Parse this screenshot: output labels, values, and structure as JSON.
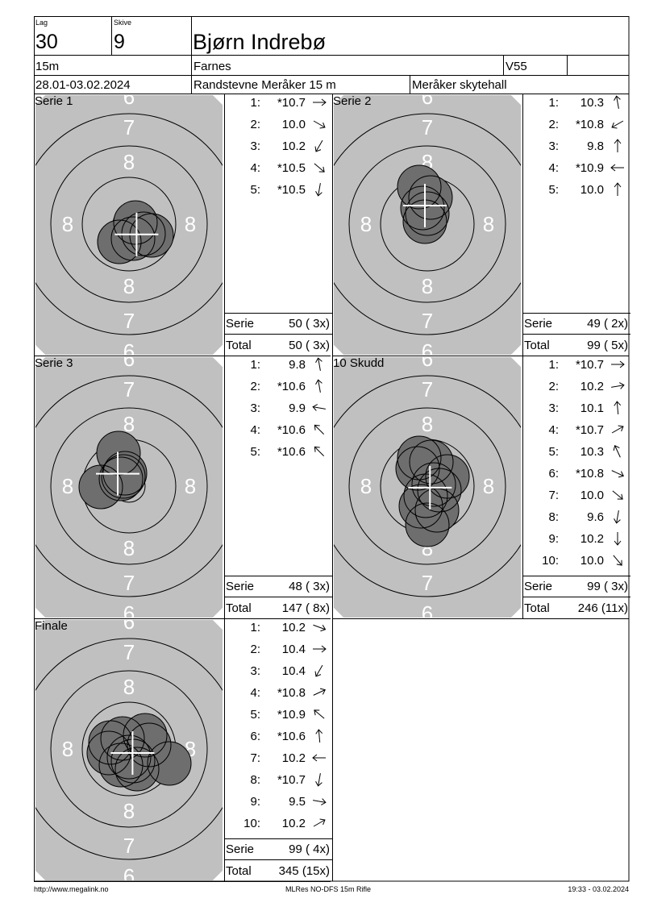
{
  "header": {
    "lag_label": "Lag",
    "lag": "30",
    "skive_label": "Skive",
    "skive": "9",
    "name": "Bjørn Indrebø",
    "distance": "15m",
    "club": "Farnes",
    "age_class": "V55",
    "date": "28.01-03.02.2024",
    "event": "Randstevne Meråker 15 m",
    "venue": "Meråker skytehall"
  },
  "target": {
    "labels": [
      "6",
      "7",
      "8"
    ]
  },
  "panels": [
    {
      "title": "Serie 1",
      "shots": [
        {
          "no": "1:",
          "score": "*10.7"
        },
        {
          "no": "2:",
          "score": "10.0"
        },
        {
          "no": "3:",
          "score": "10.2"
        },
        {
          "no": "4:",
          "score": "*10.5"
        },
        {
          "no": "5:",
          "score": "*10.5"
        }
      ],
      "serie_label": "Serie",
      "serie": "50 ( 3x)",
      "total_label": "Total",
      "total": "50 ( 3x)"
    },
    {
      "title": "Serie 2",
      "shots": [
        {
          "no": "1:",
          "score": "10.3"
        },
        {
          "no": "2:",
          "score": "*10.8"
        },
        {
          "no": "3:",
          "score": "9.8"
        },
        {
          "no": "4:",
          "score": "*10.9"
        },
        {
          "no": "5:",
          "score": "10.0"
        }
      ],
      "serie_label": "Serie",
      "serie": "49 ( 2x)",
      "total_label": "Total",
      "total": "99 ( 5x)"
    },
    {
      "title": "Serie 3",
      "shots": [
        {
          "no": "1:",
          "score": "9.8"
        },
        {
          "no": "2:",
          "score": "*10.6"
        },
        {
          "no": "3:",
          "score": "9.9"
        },
        {
          "no": "4:",
          "score": "*10.6"
        },
        {
          "no": "5:",
          "score": "*10.6"
        }
      ],
      "serie_label": "Serie",
      "serie": "48 ( 3x)",
      "total_label": "Total",
      "total": "147 ( 8x)"
    },
    {
      "title": "10 Skudd",
      "shots": [
        {
          "no": "1:",
          "score": "*10.7"
        },
        {
          "no": "2:",
          "score": "10.2"
        },
        {
          "no": "3:",
          "score": "10.1"
        },
        {
          "no": "4:",
          "score": "*10.7"
        },
        {
          "no": "5:",
          "score": "10.3"
        },
        {
          "no": "6:",
          "score": "*10.8"
        },
        {
          "no": "7:",
          "score": "10.0"
        },
        {
          "no": "8:",
          "score": "9.6"
        },
        {
          "no": "9:",
          "score": "10.2"
        },
        {
          "no": "10:",
          "score": "10.0"
        }
      ],
      "serie_label": "Serie",
      "serie": "99 ( 3x)",
      "total_label": "Total",
      "total": "246 (11x)"
    },
    {
      "title": "Finale",
      "shots": [
        {
          "no": "1:",
          "score": "10.2"
        },
        {
          "no": "2:",
          "score": "10.4"
        },
        {
          "no": "3:",
          "score": "10.4"
        },
        {
          "no": "4:",
          "score": "*10.8"
        },
        {
          "no": "5:",
          "score": "*10.9"
        },
        {
          "no": "6:",
          "score": "*10.6"
        },
        {
          "no": "7:",
          "score": "10.2"
        },
        {
          "no": "8:",
          "score": "*10.7"
        },
        {
          "no": "9:",
          "score": "9.5"
        },
        {
          "no": "10:",
          "score": "10.2"
        }
      ],
      "serie_label": "Serie",
      "serie": "99 ( 4x)",
      "total_label": "Total",
      "total": "345 (15x)"
    }
  ],
  "footer": {
    "url": "http://www.megalink.no",
    "program": "MLRes NO-DFS 15m Rifle",
    "time": "19:33 - 03.02.2024"
  }
}
